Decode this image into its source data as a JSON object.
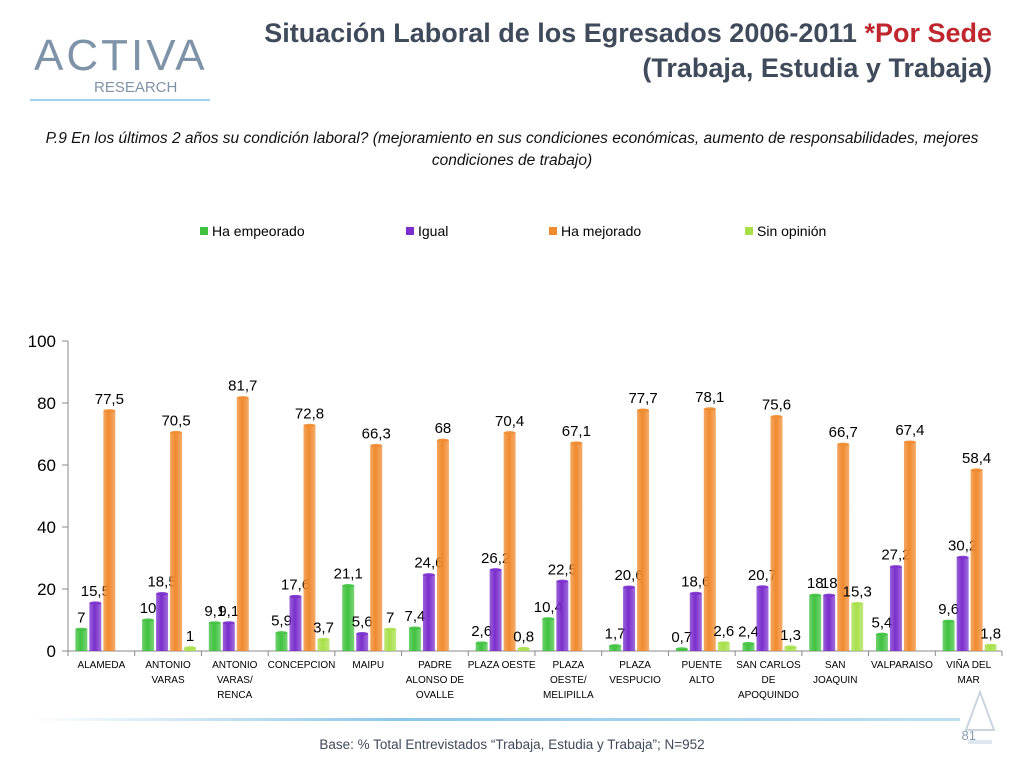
{
  "header": {
    "logo_main": "ACTIVA",
    "logo_sub": "RESEARCH",
    "title_line1_a": "Situación Laboral de los Egresados 2006-2011 ",
    "title_line1_b": "*Por Sede",
    "title_line2": "(Trabaja, Estudia y Trabaja)"
  },
  "question": "P.9  En los últimos 2 años su condición laboral? (mejoramiento en sus condiciones económicas, aumento de responsabilidades, mejores condiciones de trabajo)",
  "footer": {
    "base": "Base: % Total Entrevistados “Trabaja, Estudia y Trabaja”; N=952",
    "page_number": "81"
  },
  "colors": {
    "Ha empeorado": "#3fc23f",
    "Igual": "#7a2ecc",
    "Ha mejorado": "#f08a2e",
    "Sin opinión": "#a8e04a"
  },
  "chart_data": {
    "type": "bar",
    "categories": [
      [
        "ALAMEDA"
      ],
      [
        "ANTONIO",
        "VARAS"
      ],
      [
        "ANTONIO",
        "VARAS/",
        "RENCA"
      ],
      [
        "CONCEPCION"
      ],
      [
        "MAIPU"
      ],
      [
        "PADRE",
        "ALONSO DE",
        "OVALLE"
      ],
      [
        "PLAZA OESTE"
      ],
      [
        "PLAZA",
        "OESTE/",
        "MELIPILLA"
      ],
      [
        "PLAZA",
        "VESPUCIO"
      ],
      [
        "PUENTE",
        "ALTO"
      ],
      [
        "SAN CARLOS",
        "DE",
        "APOQUINDO"
      ],
      [
        "SAN",
        "JOAQUIN"
      ],
      [
        "VALPARAISO"
      ],
      [
        "VIÑA DEL",
        "MAR"
      ]
    ],
    "series": [
      {
        "name": "Ha empeorado",
        "values": [
          7,
          10,
          9.1,
          5.9,
          21.1,
          7.4,
          2.6,
          10.4,
          1.7,
          0.7,
          2.4,
          18,
          5.4,
          9.6
        ],
        "labels": [
          "7",
          "10",
          "9,1",
          "5,9",
          "21,1",
          "7,4",
          "2,6",
          "10,4",
          "1,7",
          "0,7",
          "2,4",
          "18",
          "5,4",
          "9,6"
        ]
      },
      {
        "name": "Igual",
        "values": [
          15.5,
          18.5,
          9.1,
          17.6,
          5.6,
          24.6,
          26.2,
          22.5,
          20.6,
          18.6,
          20.7,
          18,
          27.2,
          30.2
        ],
        "labels": [
          "15,5",
          "18,5",
          "9,1",
          "17,6",
          "5,6",
          "24,6",
          "26,2",
          "22,5",
          "20,6",
          "18,6",
          "20,7",
          "18",
          "27,2",
          "30,2"
        ]
      },
      {
        "name": "Ha mejorado",
        "values": [
          77.5,
          70.5,
          81.7,
          72.8,
          66.3,
          68,
          70.4,
          67.1,
          77.7,
          78.1,
          75.6,
          66.7,
          67.4,
          58.4
        ],
        "labels": [
          "77,5",
          "70,5",
          "81,7",
          "72,8",
          "66,3",
          "68",
          "70,4",
          "67,1",
          "77,7",
          "78,1",
          "75,6",
          "66,7",
          "67,4",
          "58,4"
        ]
      },
      {
        "name": "Sin opinión",
        "values": [
          0,
          1,
          0,
          3.7,
          7,
          0,
          0.8,
          0,
          0,
          2.6,
          1.3,
          15.3,
          0,
          1.8
        ],
        "labels": [
          "",
          "1",
          "",
          "3,7",
          "7",
          "",
          "0,8",
          "",
          "",
          "2,6",
          "1,3",
          "15,3",
          "",
          "1,8"
        ]
      }
    ],
    "ylim": [
      0,
      100
    ],
    "yticks": [
      0,
      20,
      40,
      60,
      80,
      100
    ],
    "title": "",
    "xlabel": "",
    "ylabel": "",
    "legend_position": "top"
  }
}
